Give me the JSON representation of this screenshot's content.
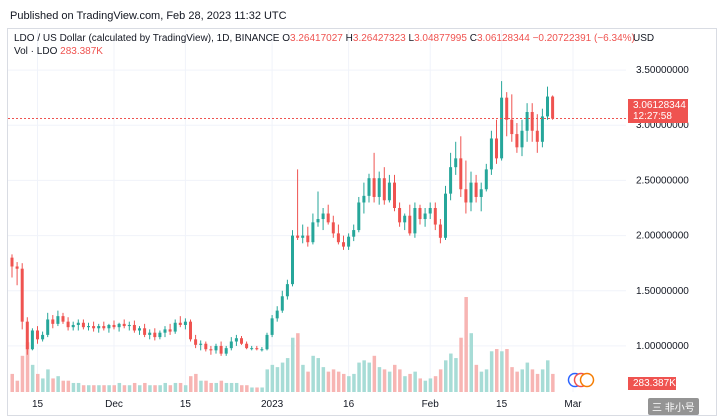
{
  "header": {
    "published": "Published on TradingView.com, Feb 28, 2023 11:32 UTC"
  },
  "legend": {
    "symbol": "LDO / US Dollar (calculated by TradingView), 1D, BINANCE",
    "open_label": "O",
    "open": "3.26417027",
    "high_label": "H",
    "high": "3.26427323",
    "low_label": "L",
    "low": "3.04877995",
    "close_label": "C",
    "close": "3.06128344",
    "change": "−0.20722391 (−6.34%)",
    "volume_label": "Vol · LDO",
    "volume": "283.387K"
  },
  "axis": {
    "currency": "USD"
  },
  "price_tag": {
    "price": "3.06128344",
    "countdown": "12:27:58"
  },
  "volume_tag": "283.387K",
  "watermark": "三 非小号",
  "colors": {
    "up": "#26a69a",
    "down": "#ef5350",
    "up_volume": "#a7dcd6",
    "down_volume": "#f7b5b3",
    "grid": "#f0f3fa"
  },
  "chart_data": {
    "type": "candlestick",
    "symbol": "LDO / US Dollar",
    "interval": "1D",
    "exchange": "BINANCE",
    "y_ticks": [
      1.0,
      1.5,
      2.0,
      2.5,
      3.0,
      3.5
    ],
    "y_tick_labels": [
      "1.00000000",
      "1.50000000",
      "2.00000000",
      "2.50000000",
      "3.00000000",
      "3.50000000"
    ],
    "ylim": [
      0.8,
      3.7
    ],
    "x_tick_labels": [
      {
        "label": "15",
        "index": 5
      },
      {
        "label": "Dec",
        "index": 20
      },
      {
        "label": "15",
        "index": 34
      },
      {
        "label": "2023",
        "index": 51
      },
      {
        "label": "16",
        "index": 66
      },
      {
        "label": "Feb",
        "index": 82
      },
      {
        "label": "15",
        "index": 96
      },
      {
        "label": "Mar",
        "index": 110
      }
    ],
    "candles": [
      {
        "o": 1.8,
        "h": 1.83,
        "l": 1.62,
        "c": 1.72,
        "v": 0.8
      },
      {
        "o": 1.72,
        "h": 1.76,
        "l": 1.55,
        "c": 1.7,
        "v": 0.5
      },
      {
        "o": 1.7,
        "h": 1.75,
        "l": 1.15,
        "c": 1.22,
        "v": 1.6
      },
      {
        "o": 1.22,
        "h": 1.26,
        "l": 0.92,
        "c": 0.97,
        "v": 2.2
      },
      {
        "o": 0.97,
        "h": 1.16,
        "l": 0.96,
        "c": 1.14,
        "v": 1.2
      },
      {
        "o": 1.14,
        "h": 1.18,
        "l": 1.02,
        "c": 1.06,
        "v": 0.8
      },
      {
        "o": 1.06,
        "h": 1.13,
        "l": 1.04,
        "c": 1.1,
        "v": 0.6
      },
      {
        "o": 1.1,
        "h": 1.3,
        "l": 1.08,
        "c": 1.24,
        "v": 1.0
      },
      {
        "o": 1.24,
        "h": 1.28,
        "l": 1.16,
        "c": 1.2,
        "v": 0.6
      },
      {
        "o": 1.2,
        "h": 1.32,
        "l": 1.18,
        "c": 1.27,
        "v": 0.7
      },
      {
        "o": 1.27,
        "h": 1.3,
        "l": 1.2,
        "c": 1.22,
        "v": 0.5
      },
      {
        "o": 1.22,
        "h": 1.26,
        "l": 1.14,
        "c": 1.17,
        "v": 0.5
      },
      {
        "o": 1.17,
        "h": 1.22,
        "l": 1.14,
        "c": 1.19,
        "v": 0.4
      },
      {
        "o": 1.19,
        "h": 1.24,
        "l": 1.14,
        "c": 1.21,
        "v": 0.4
      },
      {
        "o": 1.21,
        "h": 1.24,
        "l": 1.15,
        "c": 1.17,
        "v": 0.3
      },
      {
        "o": 1.17,
        "h": 1.21,
        "l": 1.14,
        "c": 1.18,
        "v": 0.3
      },
      {
        "o": 1.18,
        "h": 1.22,
        "l": 1.13,
        "c": 1.16,
        "v": 0.3
      },
      {
        "o": 1.16,
        "h": 1.2,
        "l": 1.12,
        "c": 1.18,
        "v": 0.3
      },
      {
        "o": 1.18,
        "h": 1.22,
        "l": 1.14,
        "c": 1.16,
        "v": 0.3
      },
      {
        "o": 1.16,
        "h": 1.2,
        "l": 1.12,
        "c": 1.19,
        "v": 0.3
      },
      {
        "o": 1.19,
        "h": 1.23,
        "l": 1.15,
        "c": 1.17,
        "v": 0.3
      },
      {
        "o": 1.17,
        "h": 1.21,
        "l": 1.13,
        "c": 1.2,
        "v": 0.4
      },
      {
        "o": 1.2,
        "h": 1.24,
        "l": 1.16,
        "c": 1.18,
        "v": 0.3
      },
      {
        "o": 1.18,
        "h": 1.22,
        "l": 1.14,
        "c": 1.19,
        "v": 0.3
      },
      {
        "o": 1.19,
        "h": 1.23,
        "l": 1.12,
        "c": 1.14,
        "v": 0.4
      },
      {
        "o": 1.14,
        "h": 1.18,
        "l": 1.1,
        "c": 1.16,
        "v": 0.3
      },
      {
        "o": 1.16,
        "h": 1.2,
        "l": 1.08,
        "c": 1.1,
        "v": 0.4
      },
      {
        "o": 1.1,
        "h": 1.15,
        "l": 1.06,
        "c": 1.12,
        "v": 0.3
      },
      {
        "o": 1.12,
        "h": 1.16,
        "l": 1.05,
        "c": 1.08,
        "v": 0.3
      },
      {
        "o": 1.08,
        "h": 1.14,
        "l": 1.06,
        "c": 1.12,
        "v": 0.3
      },
      {
        "o": 1.12,
        "h": 1.18,
        "l": 1.08,
        "c": 1.15,
        "v": 0.4
      },
      {
        "o": 1.15,
        "h": 1.2,
        "l": 1.1,
        "c": 1.13,
        "v": 0.3
      },
      {
        "o": 1.13,
        "h": 1.24,
        "l": 1.11,
        "c": 1.21,
        "v": 0.4
      },
      {
        "o": 1.21,
        "h": 1.27,
        "l": 1.17,
        "c": 1.19,
        "v": 0.4
      },
      {
        "o": 1.19,
        "h": 1.25,
        "l": 1.15,
        "c": 1.22,
        "v": 0.3
      },
      {
        "o": 1.22,
        "h": 1.24,
        "l": 1.04,
        "c": 1.06,
        "v": 0.7
      },
      {
        "o": 1.06,
        "h": 1.1,
        "l": 0.98,
        "c": 1.01,
        "v": 0.8
      },
      {
        "o": 1.01,
        "h": 1.05,
        "l": 0.96,
        "c": 1.02,
        "v": 0.5
      },
      {
        "o": 1.02,
        "h": 1.04,
        "l": 0.95,
        "c": 0.97,
        "v": 0.5
      },
      {
        "o": 0.97,
        "h": 1.0,
        "l": 0.92,
        "c": 0.96,
        "v": 0.4
      },
      {
        "o": 0.96,
        "h": 1.02,
        "l": 0.93,
        "c": 1.0,
        "v": 0.4
      },
      {
        "o": 1.0,
        "h": 1.04,
        "l": 0.91,
        "c": 0.93,
        "v": 0.5
      },
      {
        "o": 0.93,
        "h": 1.0,
        "l": 0.91,
        "c": 0.98,
        "v": 0.4
      },
      {
        "o": 0.98,
        "h": 1.08,
        "l": 0.96,
        "c": 1.04,
        "v": 0.4
      },
      {
        "o": 1.04,
        "h": 1.1,
        "l": 1.0,
        "c": 1.07,
        "v": 0.4
      },
      {
        "o": 1.07,
        "h": 1.09,
        "l": 1.01,
        "c": 1.02,
        "v": 0.3
      },
      {
        "o": 1.02,
        "h": 1.04,
        "l": 0.97,
        "c": 0.98,
        "v": 0.3
      },
      {
        "o": 0.98,
        "h": 1.0,
        "l": 0.96,
        "c": 0.98,
        "v": 0.2
      },
      {
        "o": 0.98,
        "h": 1.0,
        "l": 0.96,
        "c": 0.97,
        "v": 0.2
      },
      {
        "o": 0.97,
        "h": 0.99,
        "l": 0.95,
        "c": 0.97,
        "v": 0.2
      },
      {
        "o": 0.97,
        "h": 1.12,
        "l": 0.96,
        "c": 1.1,
        "v": 1.0
      },
      {
        "o": 1.1,
        "h": 1.28,
        "l": 1.08,
        "c": 1.25,
        "v": 1.2
      },
      {
        "o": 1.25,
        "h": 1.36,
        "l": 1.22,
        "c": 1.32,
        "v": 1.1
      },
      {
        "o": 1.32,
        "h": 1.5,
        "l": 1.3,
        "c": 1.45,
        "v": 1.3
      },
      {
        "o": 1.45,
        "h": 1.6,
        "l": 1.42,
        "c": 1.56,
        "v": 1.5
      },
      {
        "o": 1.56,
        "h": 2.05,
        "l": 1.54,
        "c": 2.0,
        "v": 2.4
      },
      {
        "o": 2.0,
        "h": 2.6,
        "l": 1.96,
        "c": 1.98,
        "v": 2.6
      },
      {
        "o": 1.98,
        "h": 2.1,
        "l": 1.93,
        "c": 2.0,
        "v": 1.2
      },
      {
        "o": 2.0,
        "h": 2.08,
        "l": 1.9,
        "c": 1.94,
        "v": 0.9
      },
      {
        "o": 1.94,
        "h": 2.2,
        "l": 1.92,
        "c": 2.12,
        "v": 1.6
      },
      {
        "o": 2.12,
        "h": 2.4,
        "l": 2.08,
        "c": 2.15,
        "v": 1.5
      },
      {
        "o": 2.15,
        "h": 2.25,
        "l": 2.05,
        "c": 2.2,
        "v": 1.1
      },
      {
        "o": 2.2,
        "h": 2.28,
        "l": 2.1,
        "c": 2.12,
        "v": 0.9
      },
      {
        "o": 2.12,
        "h": 2.18,
        "l": 1.98,
        "c": 2.02,
        "v": 1.0
      },
      {
        "o": 2.02,
        "h": 2.1,
        "l": 1.92,
        "c": 1.94,
        "v": 0.9
      },
      {
        "o": 1.94,
        "h": 2.0,
        "l": 1.87,
        "c": 1.9,
        "v": 0.8
      },
      {
        "o": 1.9,
        "h": 2.02,
        "l": 1.87,
        "c": 1.99,
        "v": 0.7
      },
      {
        "o": 1.99,
        "h": 2.1,
        "l": 1.95,
        "c": 2.05,
        "v": 0.8
      },
      {
        "o": 2.05,
        "h": 2.35,
        "l": 2.03,
        "c": 2.3,
        "v": 1.3
      },
      {
        "o": 2.3,
        "h": 2.48,
        "l": 2.2,
        "c": 2.36,
        "v": 1.4
      },
      {
        "o": 2.36,
        "h": 2.56,
        "l": 2.3,
        "c": 2.52,
        "v": 1.3
      },
      {
        "o": 2.52,
        "h": 2.75,
        "l": 2.3,
        "c": 2.35,
        "v": 1.6
      },
      {
        "o": 2.35,
        "h": 2.58,
        "l": 2.28,
        "c": 2.52,
        "v": 1.1
      },
      {
        "o": 2.52,
        "h": 2.62,
        "l": 2.28,
        "c": 2.32,
        "v": 1.0
      },
      {
        "o": 2.32,
        "h": 2.55,
        "l": 2.3,
        "c": 2.48,
        "v": 0.9
      },
      {
        "o": 2.48,
        "h": 2.55,
        "l": 2.22,
        "c": 2.25,
        "v": 1.2
      },
      {
        "o": 2.25,
        "h": 2.3,
        "l": 2.08,
        "c": 2.12,
        "v": 1.0
      },
      {
        "o": 2.12,
        "h": 2.2,
        "l": 2.05,
        "c": 2.18,
        "v": 0.7
      },
      {
        "o": 2.18,
        "h": 2.28,
        "l": 2.0,
        "c": 2.02,
        "v": 0.8
      },
      {
        "o": 2.02,
        "h": 2.3,
        "l": 1.98,
        "c": 2.25,
        "v": 0.9
      },
      {
        "o": 2.25,
        "h": 2.28,
        "l": 2.1,
        "c": 2.15,
        "v": 0.6
      },
      {
        "o": 2.15,
        "h": 2.25,
        "l": 2.08,
        "c": 2.2,
        "v": 0.5
      },
      {
        "o": 2.2,
        "h": 2.3,
        "l": 2.15,
        "c": 2.25,
        "v": 0.6
      },
      {
        "o": 2.25,
        "h": 2.3,
        "l": 2.05,
        "c": 2.1,
        "v": 0.7
      },
      {
        "o": 2.1,
        "h": 2.15,
        "l": 1.93,
        "c": 1.98,
        "v": 1.0
      },
      {
        "o": 1.98,
        "h": 2.45,
        "l": 1.96,
        "c": 2.38,
        "v": 1.4
      },
      {
        "o": 2.38,
        "h": 2.75,
        "l": 2.32,
        "c": 2.62,
        "v": 1.7
      },
      {
        "o": 2.62,
        "h": 2.85,
        "l": 2.55,
        "c": 2.7,
        "v": 1.5
      },
      {
        "o": 2.7,
        "h": 2.9,
        "l": 2.35,
        "c": 2.42,
        "v": 2.4
      },
      {
        "o": 2.42,
        "h": 2.68,
        "l": 2.2,
        "c": 2.3,
        "v": 4.2
      },
      {
        "o": 2.3,
        "h": 2.58,
        "l": 2.22,
        "c": 2.48,
        "v": 2.6
      },
      {
        "o": 2.48,
        "h": 2.55,
        "l": 2.3,
        "c": 2.35,
        "v": 1.2
      },
      {
        "o": 2.35,
        "h": 2.48,
        "l": 2.22,
        "c": 2.42,
        "v": 0.9
      },
      {
        "o": 2.42,
        "h": 2.65,
        "l": 2.4,
        "c": 2.6,
        "v": 1.0
      },
      {
        "o": 2.6,
        "h": 2.95,
        "l": 2.55,
        "c": 2.88,
        "v": 1.8
      },
      {
        "o": 2.88,
        "h": 3.05,
        "l": 2.65,
        "c": 2.7,
        "v": 1.9
      },
      {
        "o": 2.7,
        "h": 3.4,
        "l": 2.68,
        "c": 3.25,
        "v": 1.8
      },
      {
        "o": 3.25,
        "h": 3.3,
        "l": 2.9,
        "c": 3.05,
        "v": 1.9
      },
      {
        "o": 3.05,
        "h": 3.28,
        "l": 2.85,
        "c": 2.92,
        "v": 1.1
      },
      {
        "o": 2.92,
        "h": 3.02,
        "l": 2.75,
        "c": 2.8,
        "v": 0.9
      },
      {
        "o": 2.8,
        "h": 3.05,
        "l": 2.72,
        "c": 2.95,
        "v": 1.0
      },
      {
        "o": 2.95,
        "h": 3.2,
        "l": 2.85,
        "c": 3.12,
        "v": 1.3
      },
      {
        "o": 3.12,
        "h": 3.2,
        "l": 2.85,
        "c": 2.95,
        "v": 1.0
      },
      {
        "o": 2.95,
        "h": 3.1,
        "l": 2.75,
        "c": 2.85,
        "v": 0.8
      },
      {
        "o": 2.85,
        "h": 3.15,
        "l": 2.8,
        "c": 3.08,
        "v": 1.0
      },
      {
        "o": 3.08,
        "h": 3.35,
        "l": 3.05,
        "c": 3.26,
        "v": 1.4
      },
      {
        "o": 3.26,
        "h": 3.27,
        "l": 3.05,
        "c": 3.06,
        "v": 0.8
      }
    ],
    "last_price": 3.06128344,
    "volume_last": "283.387K"
  }
}
